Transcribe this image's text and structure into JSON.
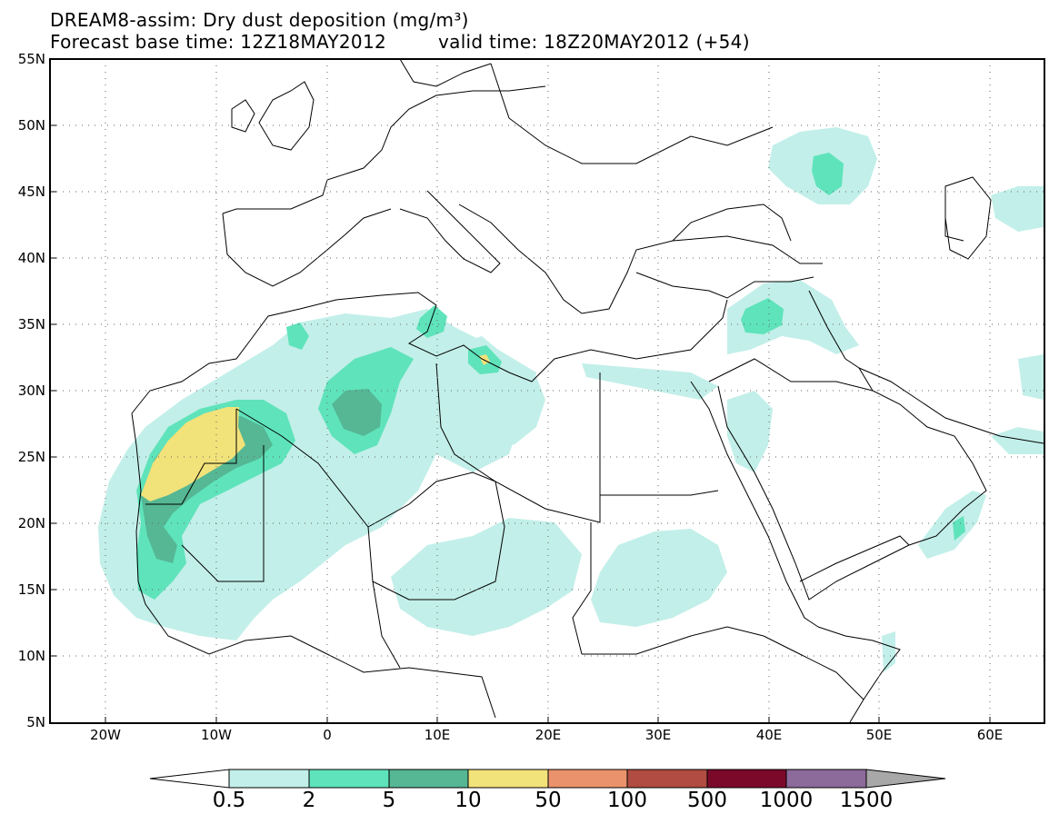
{
  "header": {
    "title_line1": "DREAM8-assim: Dry dust deposition (mg/m³)",
    "base_time": "Forecast base time: 12Z18MAY2012",
    "valid_time": "valid time: 18Z20MAY2012 (+54)"
  },
  "axes": {
    "lat_labels": [
      "55N",
      "50N",
      "45N",
      "40N",
      "35N",
      "30N",
      "25N",
      "20N",
      "15N",
      "10N",
      "5N"
    ],
    "lon_labels": [
      "20W",
      "10W",
      "0",
      "10E",
      "20E",
      "30E",
      "40E",
      "50E",
      "60E"
    ]
  },
  "legend": {
    "labels": [
      "0.5",
      "2",
      "5",
      "10",
      "50",
      "100",
      "500",
      "1000",
      "1500"
    ],
    "colors": [
      "#c2efe9",
      "#5fe3bb",
      "#55b794",
      "#f2e27a",
      "#ea926b",
      "#b04c41",
      "#7b0a2a",
      "#8c6a9a",
      "#a8a8a8"
    ]
  },
  "colors": {
    "background": "#ffffff",
    "coast": "#000000"
  }
}
